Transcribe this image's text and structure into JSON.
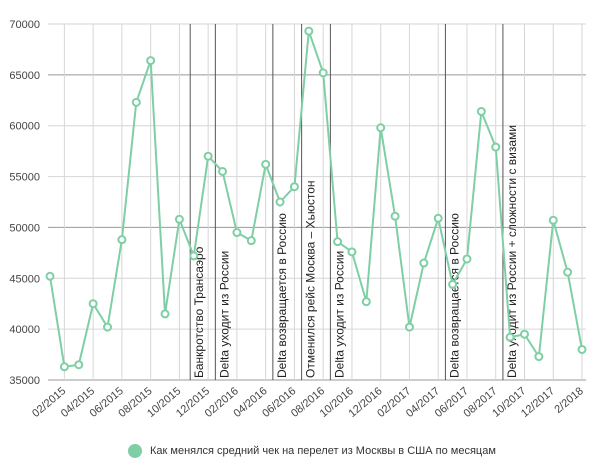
{
  "chart_data": {
    "type": "line",
    "y_ticks": [
      70000,
      65000,
      60000,
      55000,
      50000,
      45000,
      40000,
      35000
    ],
    "x_tick_labels": [
      "02/2015",
      "04/2015",
      "06/2015",
      "08/2015",
      "10/2015",
      "12/2015",
      "02/2016",
      "04/2016",
      "06/2016",
      "08/2016",
      "10/2016",
      "12/2016",
      "02/2017",
      "04/2017",
      "06/2017",
      "08/2017",
      "10/2017",
      "12/2017",
      "2/2018"
    ],
    "x": [
      "01/2015",
      "02/2015",
      "03/2015",
      "04/2015",
      "05/2015",
      "06/2015",
      "07/2015",
      "08/2015",
      "09/2015",
      "10/2015",
      "11/2015",
      "12/2015",
      "01/2016",
      "02/2016",
      "03/2016",
      "04/2016",
      "05/2016",
      "06/2016",
      "07/2016",
      "08/2016",
      "09/2016",
      "10/2016",
      "11/2016",
      "12/2016",
      "01/2017",
      "02/2017",
      "03/2017",
      "04/2017",
      "05/2017",
      "06/2017",
      "07/2017",
      "08/2017",
      "09/2017",
      "10/2017",
      "11/2017",
      "12/2017",
      "01/2018",
      "2/2018"
    ],
    "series": [
      {
        "name": "Как менялся средний чек на перелет из Москвы в США по месяцам",
        "color": "#7fcfa4",
        "values": [
          45200,
          36300,
          36500,
          42500,
          40200,
          48800,
          62300,
          66400,
          41500,
          50800,
          47200,
          57000,
          55500,
          49500,
          48700,
          56200,
          52500,
          54000,
          69300,
          65200,
          48600,
          47600,
          42700,
          59800,
          51100,
          40200,
          46500,
          50900,
          44400,
          46900,
          61400,
          57900,
          39200,
          39500,
          37300,
          50700,
          45600,
          38000
        ]
      }
    ],
    "vertical_markers": [
      {
        "x_index": 9.75,
        "label": "Банкротство Трансаэро"
      },
      {
        "x_index": 11.5,
        "label": "Delta уходит из России"
      },
      {
        "x_index": 15.5,
        "label": "Delta возвращается в Россию"
      },
      {
        "x_index": 17.5,
        "label": "Отменился рейс Москва – Хьюстон"
      },
      {
        "x_index": 19.5,
        "label": "Delta уходит из России"
      },
      {
        "x_index": 27.5,
        "label": "Delta возвращается в Россию"
      },
      {
        "x_index": 31.5,
        "label": "Delta уходит из России + сложности с визами"
      }
    ],
    "ylim": [
      35000,
      70000
    ],
    "grid": "vertical-and-horizontal",
    "legend_position": "bottom"
  }
}
